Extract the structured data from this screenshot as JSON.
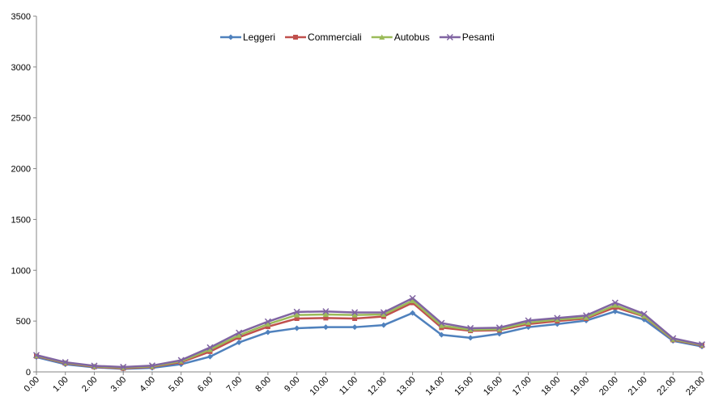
{
  "chart_data": {
    "type": "line",
    "title": "",
    "xlabel": "",
    "ylabel": "",
    "ylim": [
      0,
      3500
    ],
    "yticks": [
      0,
      500,
      1000,
      1500,
      2000,
      2500,
      3000,
      3500
    ],
    "grid": false,
    "legend_position": "top-center",
    "categories": [
      "0.00",
      "1.00",
      "2.00",
      "3.00",
      "4.00",
      "5.00",
      "6.00",
      "7.00",
      "8.00",
      "9.00",
      "10.00",
      "11.00",
      "12.00",
      "13.00",
      "14.00",
      "15.00",
      "16.00",
      "17.00",
      "18.00",
      "19.00",
      "20.00",
      "21.00",
      "22.00",
      "23.00"
    ],
    "series": [
      {
        "name": "Leggeri",
        "color": "#4F81BD",
        "marker": "diamond",
        "values": [
          145,
          75,
          45,
          30,
          40,
          75,
          150,
          290,
          390,
          430,
          440,
          440,
          460,
          580,
          365,
          335,
          375,
          440,
          470,
          505,
          595,
          515,
          305,
          250
        ]
      },
      {
        "name": "Commerciali",
        "color": "#C0504D",
        "marker": "square",
        "values": [
          155,
          85,
          50,
          35,
          50,
          95,
          200,
          340,
          445,
          525,
          530,
          525,
          545,
          680,
          435,
          405,
          410,
          470,
          500,
          525,
          635,
          545,
          315,
          260
        ]
      },
      {
        "name": "Autobus",
        "color": "#9BBB59",
        "marker": "triangle",
        "values": [
          160,
          90,
          55,
          42,
          55,
          105,
          220,
          360,
          470,
          560,
          565,
          560,
          565,
          700,
          455,
          415,
          420,
          485,
          515,
          535,
          655,
          550,
          320,
          265
        ]
      },
      {
        "name": "Pesanti",
        "color": "#8064A2",
        "marker": "x",
        "values": [
          165,
          95,
          60,
          48,
          62,
          115,
          240,
          385,
          495,
          590,
          595,
          585,
          585,
          725,
          480,
          430,
          435,
          505,
          530,
          555,
          680,
          570,
          330,
          270
        ]
      }
    ]
  }
}
